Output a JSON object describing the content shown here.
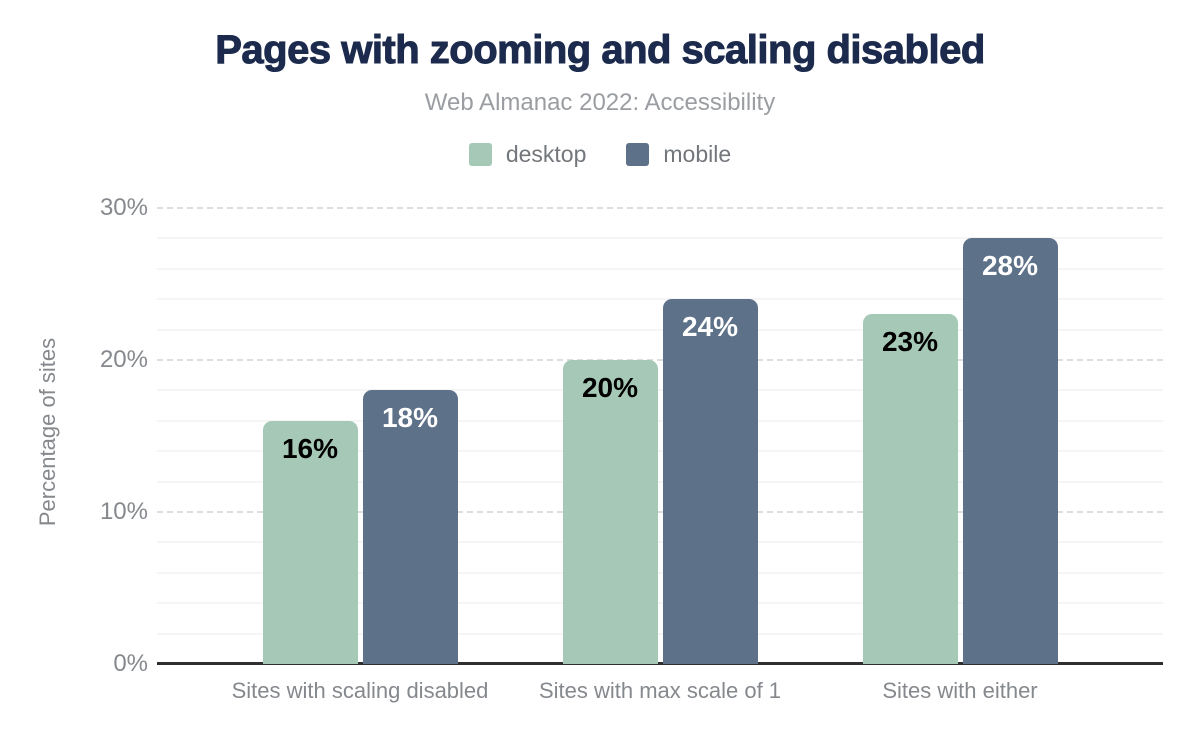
{
  "header": {
    "title": "Pages with zooming and scaling disabled",
    "subtitle": "Web Almanac 2022: Accessibility"
  },
  "legend": {
    "items": [
      {
        "label": "desktop",
        "color": "#a6c8b6"
      },
      {
        "label": "mobile",
        "color": "#5d7189"
      }
    ]
  },
  "chart_data": {
    "type": "bar",
    "title": "Pages with zooming and scaling disabled",
    "subtitle": "Web Almanac 2022: Accessibility",
    "categories": [
      "Sites with scaling disabled",
      "Sites with max scale of 1",
      "Sites with either"
    ],
    "series": [
      {
        "name": "desktop",
        "color": "#a6c8b6",
        "label_color": "#000000",
        "values": [
          16,
          20,
          23
        ],
        "labels": [
          "16%",
          "20%",
          "23%"
        ]
      },
      {
        "name": "mobile",
        "color": "#5d7189",
        "label_color": "#ffffff",
        "values": [
          18,
          24,
          28
        ],
        "labels": [
          "18%",
          "24%",
          "28%"
        ]
      }
    ],
    "xlabel": "",
    "ylabel": "Percentage of sites",
    "ylim": [
      0,
      30
    ],
    "yticks": [
      0,
      10,
      20,
      30
    ],
    "ytick_labels": [
      "0%",
      "10%",
      "20%",
      "30%"
    ],
    "grid": {
      "major_interval": 10,
      "minor_interval": 2,
      "major_style": "dashed",
      "minor_style": "solid"
    },
    "legend_position": "top"
  },
  "colors": {
    "title": "#1c2b4d",
    "subtitle": "#9a9da1",
    "legend_text": "#73777b",
    "axis_text": "#85898d",
    "axis_line": "#2f2f2f",
    "grid_major": "#dedede",
    "grid_minor": "#f5f5f5",
    "background": "#ffffff"
  }
}
